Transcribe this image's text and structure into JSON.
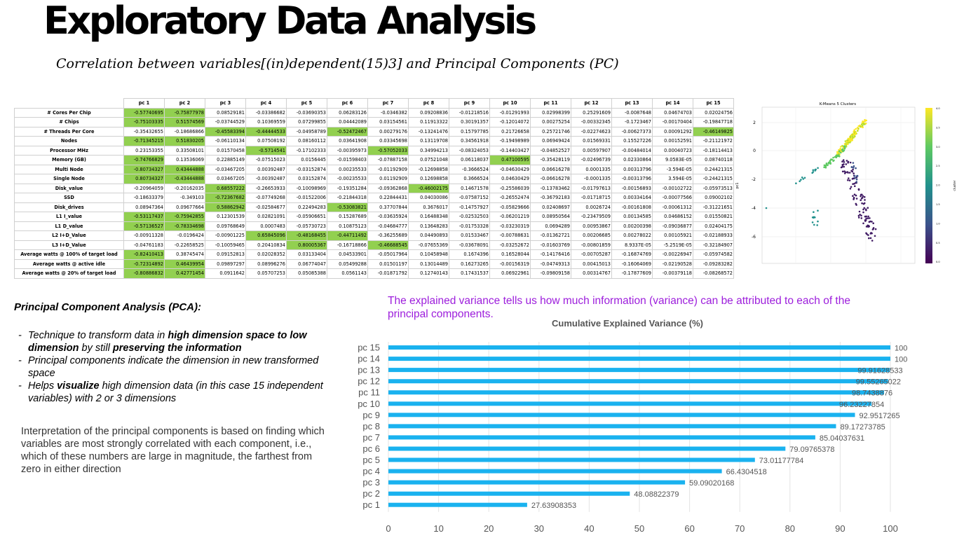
{
  "title": "Exploratory Data Analysis",
  "subtitle": "Correlation between variables[(in)dependent(15)3] and Principal Components (PC)",
  "corr_table": {
    "columns": [
      "pc 1",
      "pc 2",
      "pc 3",
      "pc 4",
      "pc 5",
      "pc 6",
      "pc 7",
      "pc 8",
      "pc 9",
      "pc 10",
      "pc 11",
      "pc 12",
      "pc 13",
      "pc 14",
      "pc 15"
    ],
    "rows": [
      {
        "label": "# Cores Per Chip",
        "values": [
          "-0.57740695",
          "-0.75877978",
          "0.08529181",
          "-0.03386682",
          "-0.03690353",
          "0.06283126",
          "-0.0346382",
          "0.09208836",
          "-0.01218516",
          "-0.01291993",
          "0.02998399",
          "0.25291609",
          "-0.0087648",
          "0.04674703",
          "0.02024756"
        ],
        "hl": [
          0,
          1
        ]
      },
      {
        "label": "# Chips",
        "values": [
          "-0.75103335",
          "0.51574569",
          "-0.03744529",
          "0.10369559",
          "0.07299855",
          "0.04442089",
          "0.03154561",
          "0.11913322",
          "0.30191357",
          "-0.12014072",
          "0.00275254",
          "-0.00332345",
          "-0.1723467",
          "-0.00170404",
          "-0.19847718"
        ],
        "hl": [
          0,
          1
        ]
      },
      {
        "label": "# Threads Per Core",
        "values": [
          "-0.35432655",
          "-0.18686866",
          "-0.45583394",
          "-0.44444533",
          "-0.04958789",
          "-0.52472467",
          "0.00279176",
          "-0.13241476",
          "0.15797785",
          "0.21726658",
          "0.25721746",
          "-0.02274623",
          "-0.00627373",
          "0.00091292",
          "-0.46149825"
        ],
        "hl": [
          2,
          3,
          5,
          14
        ]
      },
      {
        "label": "Nodes",
        "values": [
          "-0.71345215",
          "0.51830205",
          "-0.06110134",
          "0.07508192",
          "0.08160112",
          "0.03641908",
          "0.03345698",
          "0.13119708",
          "0.34561918",
          "-0.19498989",
          "0.06949424",
          "0.01569331",
          "0.15527226",
          "0.00152591",
          "-0.21121972"
        ],
        "hl": [
          0,
          1
        ]
      },
      {
        "label": "Processor MHz",
        "values": [
          "0.23153355",
          "0.33508101",
          "0.01570458",
          "-0.5714541",
          "-0.17102333",
          "-0.00395973",
          "-0.57052033",
          "0.34994213",
          "-0.08324053",
          "-0.14403427",
          "-0.04852527",
          "0.00597907",
          "-0.00484014",
          "0.00040723",
          "-0.18114413"
        ],
        "hl": [
          3,
          6
        ]
      },
      {
        "label": "Memory (GB)",
        "values": [
          "-0.74766829",
          "0.13536069",
          "0.22885149",
          "-0.07515023",
          "0.0156445",
          "-0.01598403",
          "-0.07887158",
          "0.07521048",
          "0.06118037",
          "0.47100595",
          "-0.35428119",
          "-0.02496739",
          "0.02330864",
          "9.0583E-05",
          "0.08740118"
        ],
        "hl": [
          0,
          9
        ]
      },
      {
        "label": "Multi Node",
        "values": [
          "-0.80734327",
          "0.43444888",
          "-0.03467205",
          "0.00392487",
          "-0.03152874",
          "0.00235533",
          "-0.01192909",
          "-0.12698858",
          "-0.3666524",
          "-0.04630429",
          "0.06616278",
          "0.0001335",
          "0.00313796",
          "-3.594E-05",
          "0.24421315"
        ],
        "hl": [
          0,
          1
        ]
      },
      {
        "label": "Single Node",
        "values": [
          "0.80734327",
          "-0.43444888",
          "0.03467205",
          "-0.00392487",
          "0.03152874",
          "-0.00235533",
          "0.01192909",
          "0.12698858",
          "0.3666524",
          "0.04630429",
          "-0.06616278",
          "-0.0001335",
          "-0.00313796",
          "3.594E-05",
          "-0.24421315"
        ],
        "hl": [
          0,
          1
        ]
      },
      {
        "label": "Disk_value",
        "values": [
          "-0.20964059",
          "-0.20162035",
          "0.68557222",
          "-0.26653933",
          "-0.10098969",
          "-0.19351284",
          "-0.09362868",
          "-0.46002175",
          "0.14671578",
          "-0.25586039",
          "-0.13783462",
          "-0.01797613",
          "-0.00156893",
          "-0.00102722",
          "-0.05973513"
        ],
        "hl": [
          2,
          7
        ]
      },
      {
        "label": "SSD",
        "values": [
          "-0.18633379",
          "-0.349103",
          "-0.72367682",
          "-0.07749268",
          "-0.01522006",
          "-0.21844318",
          "0.22844431",
          "0.04030086",
          "-0.07587152",
          "-0.26552474",
          "-0.36792183",
          "-0.01718715",
          "0.00334164",
          "-0.00077566",
          "0.09002102"
        ],
        "hl": [
          2
        ]
      },
      {
        "label": "Disk_drives",
        "values": [
          "0.08947364",
          "0.09677664",
          "0.58862942",
          "-0.02584677",
          "0.22494283",
          "-0.53083821",
          "0.37707844",
          "0.3676017",
          "-0.14757927",
          "-0.05829666",
          "0.02408697",
          "0.0026724",
          "-0.00161808",
          "-0.00061312",
          "-0.31221651"
        ],
        "hl": [
          2,
          5
        ]
      },
      {
        "label": "L1 I_value",
        "values": [
          "-0.53117437",
          "-0.75942855",
          "0.12301539",
          "0.02821091",
          "-0.05906651",
          "0.15287689",
          "-0.03635924",
          "0.16488348",
          "-0.02532503",
          "-0.06201219",
          "0.08950564",
          "-0.23479509",
          "0.00134585",
          "0.04686152",
          "0.01550821"
        ],
        "hl": [
          0,
          1
        ]
      },
      {
        "label": "L1 D_value",
        "values": [
          "-0.57136527",
          "-0.78334698",
          "0.09768649",
          "0.0007483",
          "-0.05730723",
          "0.10875123",
          "-0.04684777",
          "0.13648283",
          "-0.01753328",
          "-0.03230319",
          "0.0694289",
          "0.00953867",
          "0.00200398",
          "-0.09036877",
          "0.02404175"
        ],
        "hl": [
          0,
          1
        ]
      },
      {
        "label": "L2 I+D_Value",
        "values": [
          "-0.00911328",
          "-0.0196424",
          "-0.00901225",
          "0.65845096",
          "-0.48168455",
          "-0.44711492",
          "-0.36255689",
          "0.04490893",
          "0.01533467",
          "-0.00788631",
          "-0.01362721",
          "0.00206685",
          "0.00278022",
          "0.00105921",
          "-0.02188933"
        ],
        "hl": [
          3,
          4,
          5
        ]
      },
      {
        "label": "L3 I+D_Value",
        "values": [
          "-0.04761183",
          "-0.22658525",
          "-0.10059465",
          "0.20410834",
          "0.80005367",
          "-0.16718866",
          "-0.46688545",
          "-0.07655369",
          "-0.03678091",
          "-0.03252672",
          "-0.01603769",
          "-0.00801859",
          "8.9337E-05",
          "-5.2519E-05",
          "-0.32184907"
        ],
        "hl": [
          4,
          6
        ]
      },
      {
        "label": "Average watts @ 100% of target load",
        "values": [
          "-0.82410413",
          "0.38745474",
          "0.09152813",
          "0.02028352",
          "0.03133404",
          "0.04533901",
          "-0.05017964",
          "0.10458948",
          "0.1674396",
          "0.16528044",
          "-0.14176416",
          "-0.00705287",
          "-0.16874769",
          "-0.00226947",
          "-0.05974582"
        ],
        "hl": [
          0
        ]
      },
      {
        "label": "Average watts @ active idle",
        "values": [
          "-0.72314892",
          "0.46439954",
          "0.09897297",
          "0.08996276",
          "0.06774047",
          "0.05499288",
          "0.01501197",
          "0.13014489",
          "0.16273265",
          "-0.00156319",
          "-0.04749313",
          "0.00415013",
          "-0.16064069",
          "-0.02190528",
          "-0.09283282"
        ],
        "hl": [
          0,
          1
        ]
      },
      {
        "label": "Average watts @ 20% of target load",
        "values": [
          "-0.80886832",
          "0.42771454",
          "0.0911642",
          "0.05707253",
          "0.05085388",
          "0.0561143",
          "-0.01871792",
          "0.12740143",
          "0.17431537",
          "0.06922961",
          "-0.09809158",
          "0.00314767",
          "-0.17877609",
          "-0.00379118",
          "-0.08268572"
        ],
        "hl": [
          0,
          1
        ]
      }
    ]
  },
  "kmeans": {
    "title": "K-Means 5 Clusters",
    "ylabel": "pc1",
    "colorbar_label": "cluster",
    "yticks": [
      "2",
      "0",
      "-2",
      "-4",
      "-6"
    ],
    "cbar_ticks": [
      "4.0",
      "3.5",
      "3.0",
      "2.5",
      "2.0",
      "1.5",
      "1.0",
      "0.5",
      "0.0"
    ]
  },
  "pca": {
    "heading": "Principal Component Analysis (PCA):",
    "bullets": [
      [
        {
          "t": "Technique to transform data in "
        },
        {
          "t": "high dimension space to low dimension",
          "b": true
        },
        {
          "t": " by still "
        },
        {
          "t": "preserving the information",
          "b": true
        }
      ],
      [
        {
          "t": "Principal components indicate the dimension in new transformed space"
        }
      ],
      [
        {
          "t": "Helps "
        },
        {
          "t": "visualize",
          "b": true
        },
        {
          "t": " high dimension data (in this case 15 independent variables) with 2 or 3 dimensions"
        }
      ]
    ],
    "interpretation": "Interpretation of the principal components is based on finding which variables are most strongly correlated with each component, i.e., which of these numbers are large in magnitude, the farthest from zero in either direction"
  },
  "ev_note": "The explained variance tells us how much information (variance) can be attributed to each of the principal components.",
  "chart_data": {
    "type": "bar",
    "orientation": "horizontal",
    "title": "Cumulative Explained Variance (%)",
    "categories": [
      "pc 1",
      "pc 2",
      "pc 3",
      "pc 4",
      "pc 5",
      "pc 6",
      "pc 7",
      "pc 8",
      "pc 9",
      "pc 10",
      "pc 11",
      "pc 12",
      "pc 13",
      "pc 14",
      "pc 15"
    ],
    "values": [
      27.63908353,
      48.08822379,
      59.09020168,
      66.4304518,
      73.01177784,
      79.09765378,
      85.04037631,
      89.17273785,
      92.9517265,
      96.23227854,
      98.7438876,
      99.55265022,
      99.91628533,
      100,
      100
    ],
    "labels": [
      "27.63908353",
      "48.08822379",
      "59.09020168",
      "66.4304518",
      "73.01177784",
      "79.09765378",
      "85.04037631",
      "89.17273785",
      "92.9517265",
      "96.23227854",
      "98.7438876",
      "99.55265022",
      "99.91628533",
      "100",
      "100"
    ],
    "xlim": [
      0,
      100
    ],
    "xticks": [
      0,
      10,
      20,
      30,
      40,
      50,
      60,
      70,
      80,
      90,
      100
    ],
    "bar_color": "#1ab2ef",
    "grid": true
  }
}
